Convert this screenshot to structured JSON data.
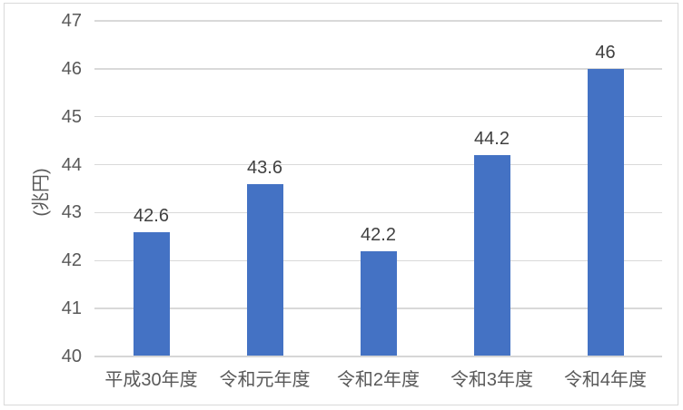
{
  "chart_data": {
    "type": "bar",
    "title": "",
    "categories": [
      "平成30年度",
      "令和元年度",
      "令和2年度",
      "令和3年度",
      "令和4年度"
    ],
    "values": [
      42.6,
      43.6,
      42.2,
      44.2,
      46
    ],
    "data_labels": [
      "42.6",
      "43.6",
      "42.2",
      "44.2",
      "46"
    ],
    "xlabel": "",
    "ylabel": "(兆円)",
    "ylim": [
      40,
      47
    ],
    "yticks": [
      40,
      41,
      42,
      43,
      44,
      45,
      46,
      47
    ],
    "grid": "horizontal",
    "legend": "none",
    "colors": {
      "bar": "#4472C4",
      "tick_label": "#595959",
      "data_label": "#404040",
      "gridline": "#D9D9D9",
      "axis_line": "#D6D6D6",
      "frame_border": "#D9D9D9",
      "background": "#FFFFFF"
    }
  }
}
